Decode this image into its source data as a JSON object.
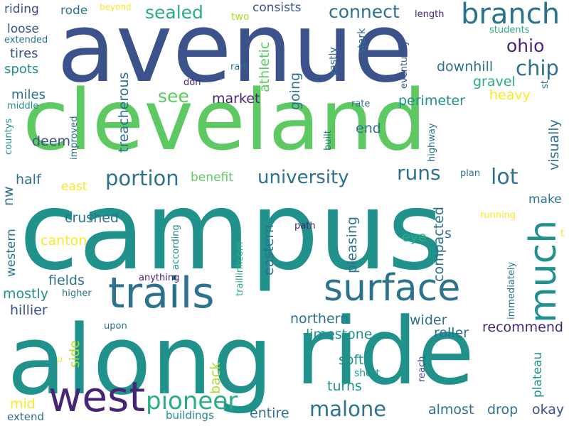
{
  "colors": {
    "background": "#ffffff",
    "dark_purple": "#482475",
    "indigo": "#3b528b",
    "blue": "#2c728e",
    "teal": "#21918c",
    "sea_green": "#28ae80",
    "green": "#5ec962",
    "lime": "#addc30",
    "yellow": "#fde725"
  },
  "words": [
    "campus",
    "avenue",
    "along",
    "ride",
    "cleveland",
    "trails",
    "surface",
    "west",
    "much",
    "branch",
    "pioneer",
    "malone",
    "university",
    "runs",
    "portion",
    "lot",
    "chip",
    "ohio",
    "connect",
    "sealed",
    "see",
    "riding",
    "rode",
    "beyond",
    "two",
    "consists",
    "length",
    "students",
    "loose",
    "tires",
    "extended",
    "spots",
    "miles",
    "middle",
    "athletic",
    "going",
    "stark",
    "vastly",
    "eventually",
    "st",
    "treacherous",
    "ran",
    "don",
    "downhill",
    "gravel",
    "heavy",
    "market",
    "perimeter",
    "improved",
    "rate",
    "deem",
    "end",
    "visually",
    "countys",
    "highway",
    "built",
    "half",
    "nw",
    "benefit",
    "east",
    "plan",
    "make",
    "crushed",
    "western",
    "canton",
    "compacted",
    "pleasing",
    "eastern",
    "according",
    "path",
    "traillinkcom",
    "running",
    "eye",
    "s",
    "fields",
    "anything",
    "mostly",
    "higher",
    "hillier",
    "immediately",
    "northern",
    "limestone",
    "roller",
    "wider",
    "recommend",
    "upon",
    "plateau",
    "side",
    "back",
    "u",
    "soft",
    "turns",
    "short",
    "reach",
    "mid",
    "extend",
    "buildings",
    "entire",
    "almost",
    "drop",
    "okay",
    "t"
  ]
}
